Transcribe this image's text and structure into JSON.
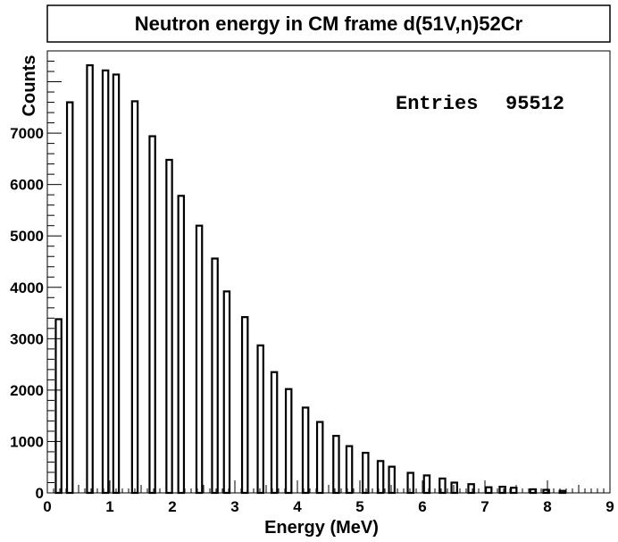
{
  "chart_data": {
    "type": "bar",
    "title": "Neutron energy in CM frame d(51V,n)52Cr",
    "xlabel": "Energy (MeV)",
    "ylabel": "Counts",
    "xlim": [
      0,
      9
    ],
    "ylim": [
      0,
      8600
    ],
    "x_ticks": [
      "0",
      "1",
      "2",
      "3",
      "4",
      "5",
      "6",
      "7",
      "8",
      "9"
    ],
    "y_ticks": [
      "0",
      "1000",
      "2000",
      "3000",
      "4000",
      "5000",
      "6000",
      "7000"
    ],
    "y_tick_values": [
      0,
      1000,
      2000,
      3000,
      4000,
      5000,
      6000,
      7000
    ],
    "bin_width": 0.09,
    "x": [
      0.18,
      0.36,
      0.68,
      0.93,
      1.1,
      1.4,
      1.68,
      1.95,
      2.14,
      2.43,
      2.68,
      2.87,
      3.16,
      3.41,
      3.63,
      3.86,
      4.13,
      4.36,
      4.62,
      4.83,
      5.09,
      5.33,
      5.51,
      5.81,
      6.07,
      6.32,
      6.51,
      6.78,
      7.06,
      7.28,
      7.46,
      7.77,
      7.98,
      8.24
    ],
    "values": [
      3380,
      7600,
      8320,
      8220,
      8140,
      7620,
      6940,
      6480,
      5780,
      5200,
      4560,
      3920,
      3420,
      2870,
      2350,
      2020,
      1660,
      1380,
      1110,
      910,
      780,
      620,
      510,
      390,
      340,
      280,
      200,
      170,
      110,
      120,
      100,
      70,
      60,
      40
    ],
    "stats": {
      "label": "Entries",
      "value": "95512"
    },
    "legend": "none",
    "grid": false
  }
}
